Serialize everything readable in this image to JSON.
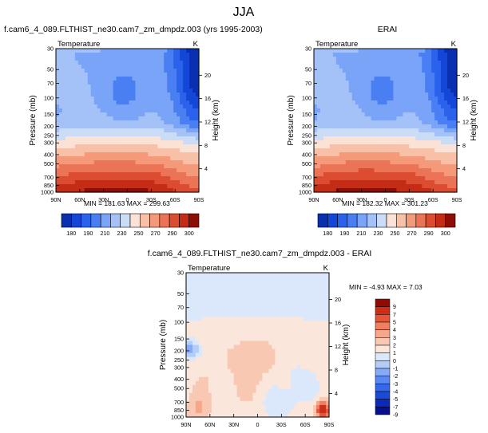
{
  "chart_data": {
    "type": "heatmap",
    "title": "JJA",
    "panels": [
      {
        "id": "model",
        "title": "f.cam6_4_089.FLTHIST_ne30.cam7_zm_dmpdz.003 (yrs 1995-2003)",
        "left_label": "Temperature",
        "right_label": "K",
        "ylabel": "Pressure (mb)",
        "ylabel_right": "Height (km)",
        "y_ticks": [
          "30",
          "50",
          "70",
          "100",
          "150",
          "200",
          "250",
          "300",
          "400",
          "500",
          "700",
          "850",
          "1000"
        ],
        "y_tick_values": [
          30,
          50,
          70,
          100,
          150,
          200,
          250,
          300,
          400,
          500,
          700,
          850,
          1000
        ],
        "height_ticks": [
          "20",
          "16",
          "12",
          "8",
          "4"
        ],
        "height_tick_values": [
          20,
          16,
          12,
          8,
          4
        ],
        "x_ticks": [
          "90N",
          "60N",
          "30N",
          "0",
          "30S",
          "60S",
          "90S"
        ],
        "x_tick_values": [
          90,
          60,
          30,
          0,
          -30,
          -60,
          -90
        ],
        "xlim": [
          90,
          -90
        ],
        "ylim": [
          1000,
          30
        ],
        "y_scale": "log",
        "stats": "MIN = 181.63  MAX = 299.63",
        "min": 181.63,
        "max": 299.63,
        "colorbar_labels": [
          "180",
          "190",
          "210",
          "230",
          "250",
          "270",
          "290",
          "300"
        ],
        "levels": [
          180,
          190,
          200,
          210,
          220,
          230,
          240,
          250,
          260,
          270,
          280,
          290,
          300
        ]
      },
      {
        "id": "obs",
        "title": "ERAI",
        "left_label": "Temperature",
        "right_label": "K",
        "ylabel": "Pressure (mb)",
        "ylabel_right": "Height (km)",
        "y_ticks": [
          "30",
          "50",
          "70",
          "100",
          "150",
          "200",
          "250",
          "300",
          "400",
          "500",
          "700",
          "850",
          "1000"
        ],
        "y_tick_values": [
          30,
          50,
          70,
          100,
          150,
          200,
          250,
          300,
          400,
          500,
          700,
          850,
          1000
        ],
        "height_ticks": [
          "20",
          "16",
          "12",
          "8",
          "4"
        ],
        "height_tick_values": [
          20,
          16,
          12,
          8,
          4
        ],
        "x_ticks": [
          "90N",
          "60N",
          "30N",
          "0",
          "30S",
          "60S",
          "90S"
        ],
        "x_tick_values": [
          90,
          60,
          30,
          0,
          -30,
          -60,
          -90
        ],
        "xlim": [
          90,
          -90
        ],
        "ylim": [
          1000,
          30
        ],
        "y_scale": "log",
        "stats": "MIN = 182.32  MAX = 301.23",
        "min": 182.32,
        "max": 301.23,
        "colorbar_labels": [
          "180",
          "190",
          "210",
          "230",
          "250",
          "270",
          "290",
          "300"
        ],
        "levels": [
          180,
          190,
          200,
          210,
          220,
          230,
          240,
          250,
          260,
          270,
          280,
          290,
          300
        ]
      },
      {
        "id": "diff",
        "title": "f.cam6_4_089.FLTHIST_ne30.cam7_zm_dmpdz.003 - ERAI",
        "left_label": "Temperature",
        "right_label": "K",
        "ylabel": "Pressure (mb)",
        "ylabel_right": "Height (km)",
        "y_ticks": [
          "30",
          "50",
          "70",
          "100",
          "150",
          "200",
          "250",
          "300",
          "400",
          "500",
          "700",
          "850",
          "1000"
        ],
        "y_tick_values": [
          30,
          50,
          70,
          100,
          150,
          200,
          250,
          300,
          400,
          500,
          700,
          850,
          1000
        ],
        "height_ticks": [
          "20",
          "16",
          "12",
          "8",
          "4"
        ],
        "height_tick_values": [
          20,
          16,
          12,
          8,
          4
        ],
        "x_ticks": [
          "90N",
          "60N",
          "30N",
          "0",
          "30S",
          "60S",
          "90S"
        ],
        "x_tick_values": [
          90,
          60,
          30,
          0,
          -30,
          -60,
          -90
        ],
        "xlim": [
          90,
          -90
        ],
        "ylim": [
          1000,
          30
        ],
        "y_scale": "log",
        "stats": "MIN = -4.93  MAX =  7.03",
        "min": -4.93,
        "max": 7.03,
        "colorbar_labels": [
          "9",
          "7",
          "5",
          "4",
          "3",
          "2",
          "1",
          "0",
          "-1",
          "-2",
          "-3",
          "-4",
          "-5",
          "-7",
          "-9"
        ],
        "levels": [
          -9,
          -7,
          -5,
          -4,
          -3,
          -2,
          -1,
          0,
          1,
          2,
          3,
          4,
          5,
          7,
          9
        ]
      }
    ]
  },
  "colors": {
    "abs_palette": [
      "#0a2fb0",
      "#1446d8",
      "#2a62ec",
      "#4a7ff4",
      "#7aa4f7",
      "#a4c2f8",
      "#cadcf6",
      "#fbe2d6",
      "#f8c0a6",
      "#f49a7a",
      "#ec7456",
      "#dc4c30",
      "#c42c16",
      "#8c0e06"
    ],
    "diff_palette": [
      "#06108e",
      "#0c2ab8",
      "#1c4ad8",
      "#3668ea",
      "#5a88f2",
      "#86aaf6",
      "#b2cdf8",
      "#dbe8fb",
      "#fbe6dc",
      "#f9c8b2",
      "#f6a68a",
      "#f07e60",
      "#e4563a",
      "#cc2e18",
      "#920a04"
    ]
  }
}
